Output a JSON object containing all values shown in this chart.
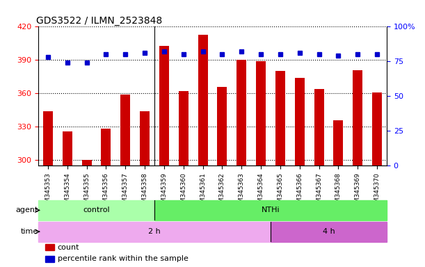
{
  "title": "GDS3522 / ILMN_2523848",
  "samples": [
    "GSM345353",
    "GSM345354",
    "GSM345355",
    "GSM345356",
    "GSM345357",
    "GSM345358",
    "GSM345359",
    "GSM345360",
    "GSM345361",
    "GSM345362",
    "GSM345363",
    "GSM345364",
    "GSM345365",
    "GSM345366",
    "GSM345367",
    "GSM345368",
    "GSM345369",
    "GSM345370"
  ],
  "counts": [
    344,
    326,
    300,
    328,
    359,
    344,
    403,
    362,
    413,
    366,
    390,
    389,
    380,
    374,
    364,
    336,
    381,
    361
  ],
  "percentile_ranks": [
    78,
    74,
    74,
    80,
    80,
    81,
    82,
    80,
    82,
    80,
    82,
    80,
    80,
    81,
    80,
    79,
    80,
    80
  ],
  "ylim_left": [
    295,
    420
  ],
  "ylim_right": [
    0,
    100
  ],
  "yticks_left": [
    300,
    330,
    360,
    390,
    420
  ],
  "yticks_right": [
    0,
    25,
    50,
    75,
    100
  ],
  "bar_color": "#cc0000",
  "dot_color": "#0000cc",
  "agent_groups": [
    {
      "label": "control",
      "start": 0,
      "end": 6,
      "color": "#aaffaa"
    },
    {
      "label": "NTHi",
      "start": 6,
      "end": 18,
      "color": "#66ee66"
    }
  ],
  "time_groups": [
    {
      "label": "2 h",
      "start": 0,
      "end": 12,
      "color": "#eeaaee"
    },
    {
      "label": "4 h",
      "start": 12,
      "end": 18,
      "color": "#cc66cc"
    }
  ],
  "legend_items": [
    {
      "label": "count",
      "color": "#cc0000"
    },
    {
      "label": "percentile rank within the sample",
      "color": "#0000cc"
    }
  ],
  "agent_sep": 5.5,
  "time_sep": 11.5,
  "xlabel_fontsize": 6.5,
  "title_fontsize": 10,
  "tick_fontsize": 8,
  "annot_fontsize": 8
}
